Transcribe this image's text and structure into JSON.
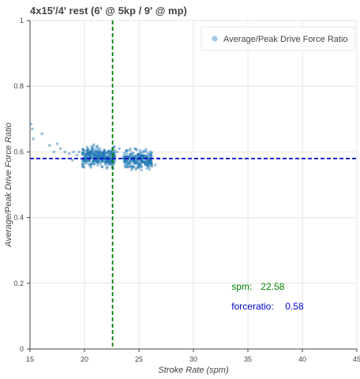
{
  "chart_data": {
    "type": "scatter",
    "title": "4x15'/4' rest (6' @ 5kp / 9' @ mp)",
    "xlabel": "Stroke Rate (spm)",
    "ylabel": "Average/Peak Drive Force Ratio",
    "xlim": [
      15,
      45
    ],
    "ylim": [
      0,
      1
    ],
    "xticks": [
      "15",
      "20",
      "25",
      "30",
      "35",
      "40",
      "45"
    ],
    "yticks": [
      "0",
      "0.2",
      "0.4",
      "0.6",
      "0.8",
      "1"
    ],
    "grid": true,
    "legend": {
      "position": "top-right",
      "entries": [
        "Average/Peak Drive Force Ratio"
      ]
    },
    "point_color": "#1f77b4",
    "clusters": [
      {
        "name": "spm ~20-22",
        "x_range": [
          19.8,
          22.8
        ],
        "y_center": 0.585,
        "y_spread": 0.03,
        "count": 340
      },
      {
        "name": "spm ~23.5-26",
        "x_range": [
          23.6,
          26.2
        ],
        "y_center": 0.575,
        "y_spread": 0.03,
        "count": 240
      }
    ],
    "outliers": [
      {
        "x": 15.1,
        "y": 0.685
      },
      {
        "x": 15.2,
        "y": 0.67
      },
      {
        "x": 15.3,
        "y": 0.64
      },
      {
        "x": 16.1,
        "y": 0.655
      },
      {
        "x": 17.5,
        "y": 0.625
      },
      {
        "x": 17.8,
        "y": 0.61
      },
      {
        "x": 18.2,
        "y": 0.6
      },
      {
        "x": 18.6,
        "y": 0.595
      },
      {
        "x": 19.0,
        "y": 0.6
      },
      {
        "x": 19.3,
        "y": 0.59
      },
      {
        "x": 19.5,
        "y": 0.6
      },
      {
        "x": 18.9,
        "y": 0.575
      },
      {
        "x": 16.8,
        "y": 0.62
      },
      {
        "x": 17.2,
        "y": 0.6
      },
      {
        "x": 23.0,
        "y": 0.6
      },
      {
        "x": 23.2,
        "y": 0.61
      },
      {
        "x": 26.8,
        "y": 0.58
      },
      {
        "x": 26.5,
        "y": 0.56
      }
    ],
    "vline": {
      "x": 22.58,
      "color": "#008000",
      "style": "dashed"
    },
    "hline": {
      "y": 0.58,
      "color": "#0000cc",
      "style": "dashed"
    },
    "annotations": [
      {
        "label": "spm:",
        "value": "22.58",
        "color": "#008000",
        "x": 33.5,
        "y": 0.18
      },
      {
        "label": "forceratio:",
        "value": "0.58",
        "color": "#0000cc",
        "x": 33.5,
        "y": 0.12
      }
    ]
  }
}
